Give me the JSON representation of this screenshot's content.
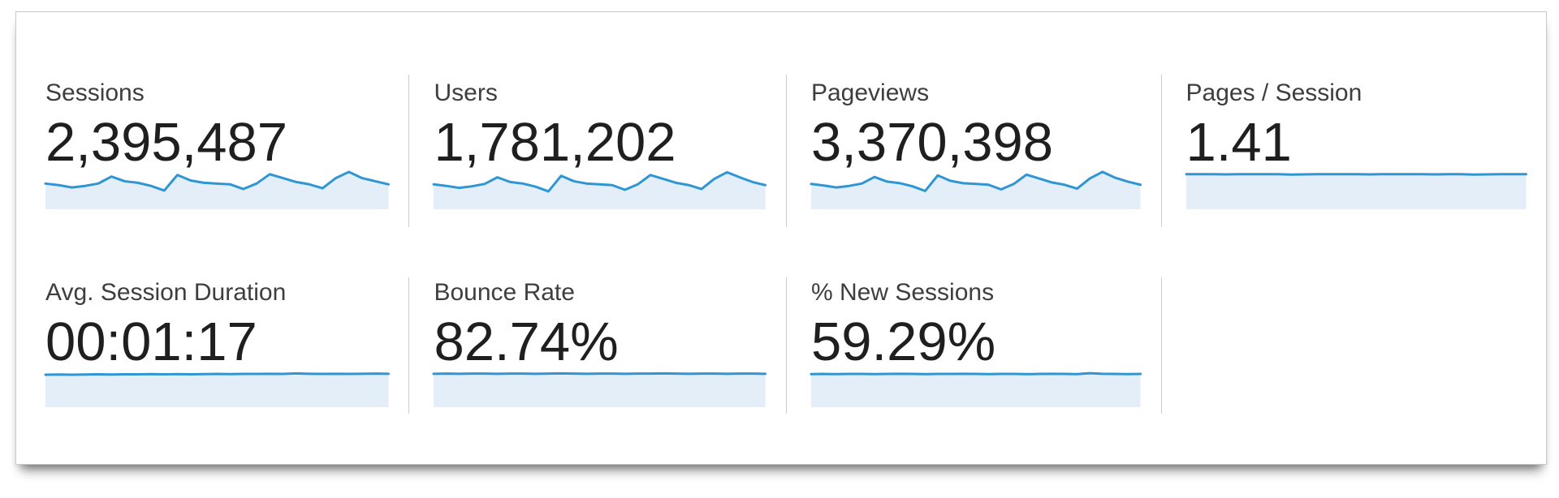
{
  "panel": {
    "border_color": "#c9c9c9",
    "divider_color": "#cccccc",
    "background": "#ffffff"
  },
  "accent": {
    "sparkline_stroke": "#3096d3",
    "sparkline_fill": "#e3eef9"
  },
  "cards": [
    {
      "label": "Sessions",
      "value": "2,395,487"
    },
    {
      "label": "Users",
      "value": "1,781,202"
    },
    {
      "label": "Pageviews",
      "value": "3,370,398"
    },
    {
      "label": "Pages / Session",
      "value": "1.41"
    },
    {
      "label": "Avg. Session Duration",
      "value": "00:01:17"
    },
    {
      "label": "Bounce Rate",
      "value": "82.74%"
    },
    {
      "label": "% New Sessions",
      "value": "59.29%"
    }
  ],
  "chart_data": [
    {
      "metric": "Sessions",
      "type": "area",
      "line_color": "#3096d3",
      "fill_color": "#e3eef9",
      "values": [
        66,
        62,
        56,
        60,
        66,
        84,
        72,
        68,
        60,
        48,
        88,
        74,
        68,
        66,
        64,
        52,
        66,
        90,
        80,
        70,
        64,
        54,
        80,
        96,
        80,
        72,
        64
      ]
    },
    {
      "metric": "Users",
      "type": "area",
      "line_color": "#3096d3",
      "fill_color": "#e3eef9",
      "values": [
        64,
        60,
        55,
        59,
        65,
        82,
        70,
        66,
        58,
        46,
        86,
        72,
        66,
        64,
        62,
        50,
        64,
        88,
        78,
        68,
        62,
        52,
        78,
        95,
        82,
        70,
        62
      ]
    },
    {
      "metric": "Pageviews",
      "type": "area",
      "line_color": "#3096d3",
      "fill_color": "#e3eef9",
      "values": [
        65,
        61,
        56,
        60,
        66,
        83,
        71,
        67,
        59,
        47,
        87,
        73,
        67,
        65,
        63,
        51,
        65,
        89,
        79,
        69,
        63,
        53,
        79,
        96,
        81,
        71,
        63
      ]
    },
    {
      "metric": "Pages / Session",
      "type": "area",
      "line_color": "#3096d3",
      "fill_color": "#e3eef9",
      "values": [
        90,
        90,
        90,
        89.5,
        90,
        90,
        90,
        90,
        89,
        89.5,
        90,
        90,
        90,
        90,
        89.5,
        90,
        90,
        90,
        90,
        89.5,
        90,
        90,
        89,
        89.5,
        90,
        90,
        90
      ]
    },
    {
      "metric": "Avg. Session Duration",
      "type": "area",
      "line_color": "#3096d3",
      "fill_color": "#e3eef9",
      "values": [
        87,
        87.5,
        87,
        87.5,
        88,
        87.5,
        88,
        88,
        88.5,
        88,
        88.5,
        88,
        88.5,
        89,
        88.5,
        89,
        89,
        89.5,
        89,
        90.5,
        89.5,
        89,
        89.5,
        89,
        89.5,
        90,
        89.5
      ]
    },
    {
      "metric": "Bounce Rate",
      "type": "area",
      "line_color": "#3096d3",
      "fill_color": "#e3eef9",
      "values": [
        89.5,
        90,
        89.5,
        90,
        90,
        89.5,
        90,
        90,
        89.5,
        90,
        90.5,
        90,
        89.5,
        90,
        90,
        89.5,
        90,
        90,
        90.5,
        90,
        89.5,
        90,
        90,
        89.5,
        90,
        90,
        89.5
      ]
    },
    {
      "metric": "% New Sessions",
      "type": "area",
      "line_color": "#3096d3",
      "fill_color": "#e3eef9",
      "values": [
        88.5,
        89,
        88.5,
        89,
        89,
        88.5,
        89,
        89.5,
        89,
        88.5,
        89,
        89,
        89.5,
        89,
        88.5,
        89,
        89,
        88.5,
        89,
        89.5,
        89,
        88.5,
        91,
        89.5,
        89,
        88.5,
        89
      ]
    }
  ]
}
